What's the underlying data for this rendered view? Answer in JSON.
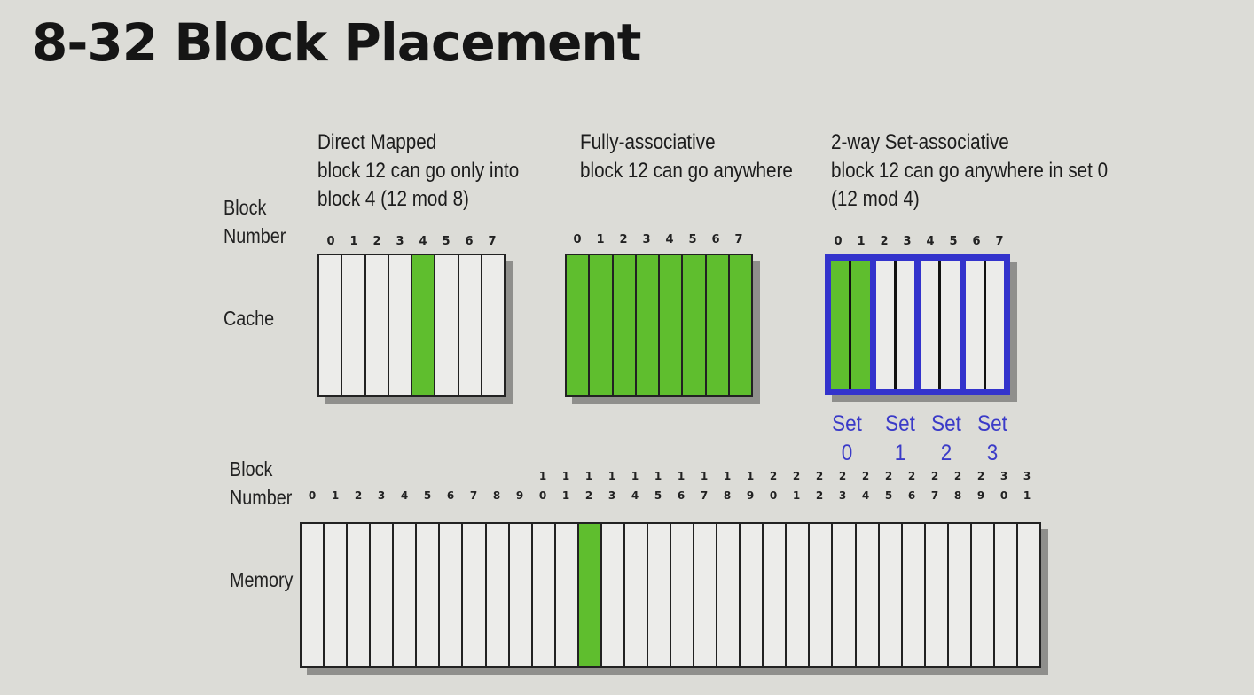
{
  "title": "8-32 Block Placement",
  "labels": {
    "block_number_top": [
      "Block",
      "Number"
    ],
    "cache": "Cache",
    "block_number_bottom": [
      "Block",
      "Number"
    ],
    "memory": "Memory"
  },
  "direct": {
    "caption": [
      "Direct Mapped",
      "block 12 can go only into",
      "block 4 (12 mod 8)"
    ],
    "indices": [
      "0",
      "1",
      "2",
      "3",
      "4",
      "5",
      "6",
      "7"
    ],
    "highlight": [
      4
    ]
  },
  "fully": {
    "caption": [
      "Fully-associative",
      "block 12 can go anywhere"
    ],
    "indices": [
      "0",
      "1",
      "2",
      "3",
      "4",
      "5",
      "6",
      "7"
    ],
    "highlight": [
      0,
      1,
      2,
      3,
      4,
      5,
      6,
      7
    ]
  },
  "set_assoc": {
    "caption": [
      "2-way Set-associative",
      "block 12 can go anywhere in set 0",
      "(12 mod 4)"
    ],
    "indices": [
      "0",
      "1",
      "2",
      "3",
      "4",
      "5",
      "6",
      "7"
    ],
    "highlight": [
      0,
      1
    ],
    "sets": [
      {
        "word": "Set",
        "num": "0"
      },
      {
        "word": "Set",
        "num": "1"
      },
      {
        "word": "Set",
        "num": "2"
      },
      {
        "word": "Set",
        "num": "3"
      }
    ]
  },
  "memory": {
    "count": 32,
    "highlight": [
      12
    ]
  },
  "colors": {
    "highlight": "#5fbe2e",
    "set_border": "#3333cc"
  }
}
